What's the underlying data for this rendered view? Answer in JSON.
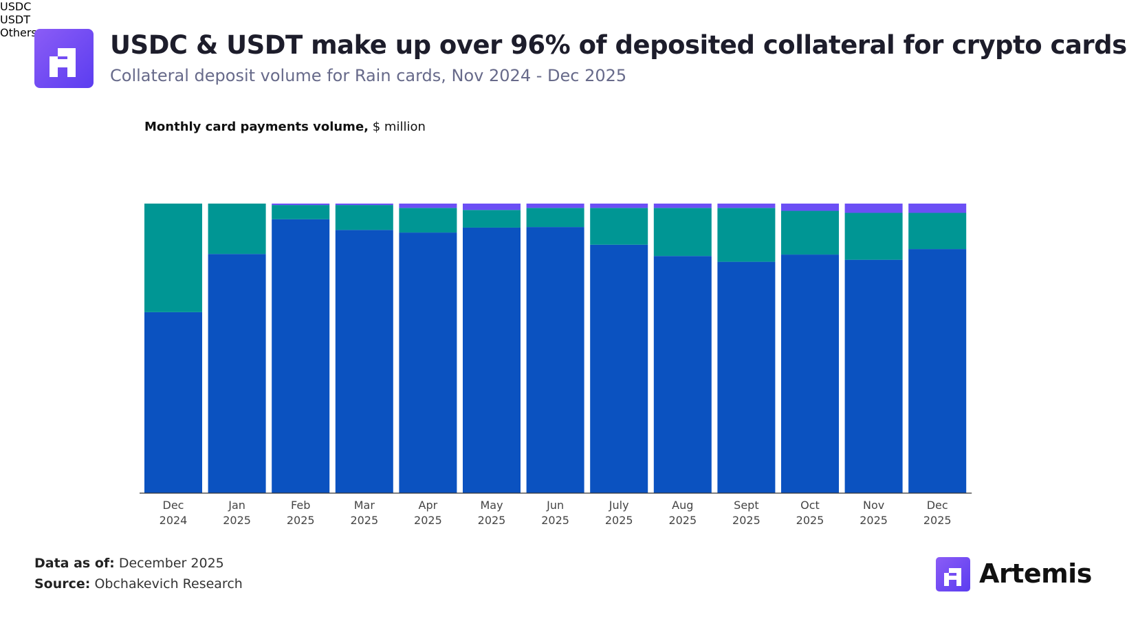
{
  "header": {
    "title": "USDC & USDT make up over 96% of deposited collateral for crypto cards",
    "subtitle": "Collateral deposit volume for Rain cards, Nov 2024 - Dec 2025"
  },
  "chart_data": {
    "type": "stacked_bar",
    "title": "Monthly card payments volume,",
    "unit": "$ million",
    "categories": [
      "Dec 2024",
      "Jan 2025",
      "Feb 2025",
      "Mar 2025",
      "Apr 2025",
      "May 2025",
      "Jun 2025",
      "July 2025",
      "Aug 2025",
      "Sept 2025",
      "Oct 2025",
      "Nov 2025",
      "Dec 2025"
    ],
    "series": [
      {
        "name": "USDC",
        "color": "#0b52c0",
        "values": [
          62.5,
          82.6,
          94.6,
          90.9,
          90.0,
          91.7,
          91.9,
          85.8,
          81.9,
          79.9,
          82.4,
          80.6,
          84.3
        ]
      },
      {
        "name": "USDT",
        "color": "#009694",
        "values": [
          37.5,
          17.4,
          4.9,
          8.6,
          8.5,
          6.1,
          6.6,
          12.7,
          16.6,
          18.6,
          15.1,
          16.2,
          12.5
        ]
      },
      {
        "name": "Others",
        "color": "#6b4ff5",
        "values": [
          0,
          0,
          0.5,
          0.5,
          1.5,
          2.2,
          1.5,
          1.5,
          1.5,
          1.5,
          2.5,
          3.2,
          3.2
        ]
      }
    ],
    "ylim": [
      0,
      100
    ]
  },
  "footer": {
    "date_label": "Data as of:",
    "date": "December 2025",
    "source_label": "Source:",
    "source": "Obchakevich Research",
    "brand": "Artemis"
  }
}
